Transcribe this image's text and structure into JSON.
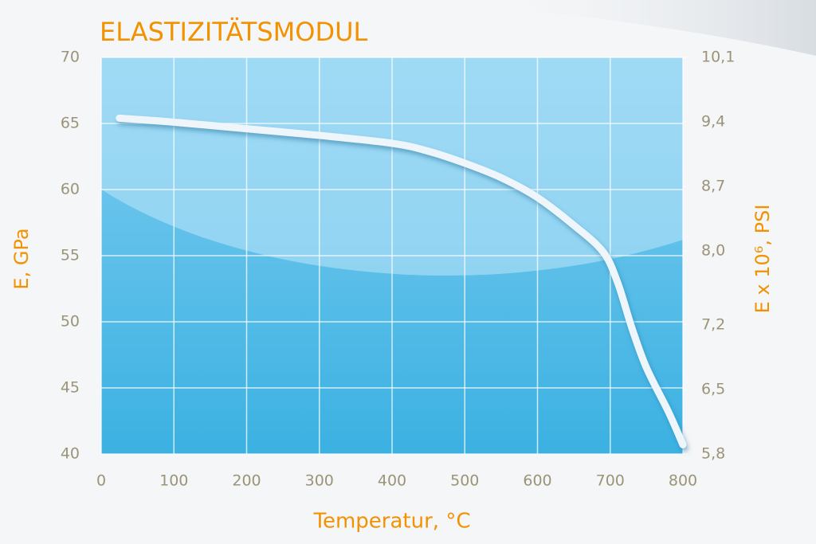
{
  "chart_data": {
    "type": "line",
    "title": "ELASTIZITÄTSMODUL",
    "x_label": "Temperatur, °C",
    "y_label": "E, GPa",
    "y2_label": "E x 10⁶, PSI",
    "x": [
      25,
      100,
      200,
      300,
      400,
      450,
      500,
      550,
      600,
      650,
      690,
      710,
      730,
      750,
      780,
      800
    ],
    "values": [
      65.4,
      65.1,
      64.6,
      64.1,
      63.5,
      62.9,
      62.0,
      60.9,
      59.4,
      57.3,
      55.3,
      53.0,
      49.5,
      46.5,
      43.2,
      40.7
    ],
    "color": "#eef6fb",
    "xlim": [
      0,
      800
    ],
    "xticks": [
      0,
      100,
      200,
      300,
      400,
      500,
      600,
      700,
      800
    ],
    "ylim": [
      40,
      70
    ],
    "yticks": [
      40,
      45,
      50,
      55,
      60,
      65,
      70
    ],
    "y2lim": [
      5.8,
      10.1
    ],
    "y2ticks": [
      {
        "value": 5.8,
        "label": "5,8"
      },
      {
        "value": 6.5,
        "label": "6,5"
      },
      {
        "value": 7.2,
        "label": "7,2"
      },
      {
        "value": 8.0,
        "label": "8,0"
      },
      {
        "value": 8.7,
        "label": "8,7"
      },
      {
        "value": 9.4,
        "label": "9,4"
      },
      {
        "value": 10.1,
        "label": "10,1"
      }
    ],
    "grid": true
  }
}
